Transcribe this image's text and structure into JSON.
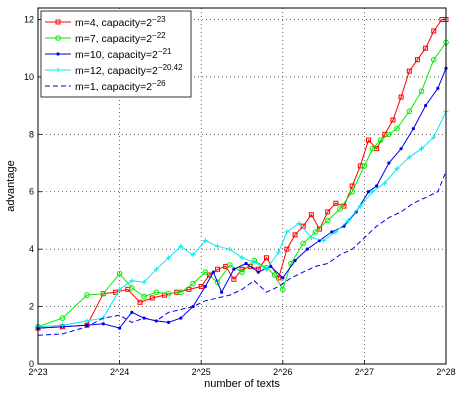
{
  "chart_data": {
    "type": "line",
    "xlabel": "number of texts",
    "ylabel": "advantage",
    "xlim": [
      23,
      28
    ],
    "ylim": [
      0,
      12.4
    ],
    "x_ticks": [
      {
        "value": 23,
        "label": "2^23"
      },
      {
        "value": 24,
        "label": "2^24"
      },
      {
        "value": 25,
        "label": "2^25"
      },
      {
        "value": 26,
        "label": "2^26"
      },
      {
        "value": 27,
        "label": "2^27"
      },
      {
        "value": 28,
        "label": "2^28"
      }
    ],
    "y_ticks": [
      0,
      2,
      4,
      6,
      8,
      10,
      12
    ],
    "grid": true,
    "legend_position": "top-left",
    "series": [
      {
        "name": "m=4, capacity=2",
        "exp": "−23",
        "color": "#ff0000",
        "dashed": false,
        "marker": "square",
        "x": [
          23.0,
          23.3,
          23.6,
          23.8,
          23.95,
          24.1,
          24.25,
          24.4,
          24.55,
          24.7,
          24.85,
          25.0,
          25.1,
          25.2,
          25.3,
          25.4,
          25.5,
          25.6,
          25.7,
          25.8,
          25.95,
          26.05,
          26.15,
          26.25,
          26.35,
          26.45,
          26.55,
          26.65,
          26.75,
          26.85,
          26.95,
          27.05,
          27.15,
          27.25,
          27.35,
          27.45,
          27.55,
          27.65,
          27.75,
          27.85,
          27.95,
          28.0
        ],
        "y": [
          1.25,
          1.3,
          1.35,
          2.45,
          2.5,
          2.6,
          2.15,
          2.3,
          2.4,
          2.5,
          2.6,
          2.7,
          3.1,
          3.3,
          3.4,
          2.95,
          3.3,
          3.4,
          3.3,
          3.7,
          3.0,
          4.0,
          4.5,
          4.8,
          5.2,
          4.7,
          5.3,
          5.6,
          5.5,
          6.2,
          6.9,
          7.8,
          7.5,
          8.0,
          8.5,
          9.3,
          10.2,
          10.6,
          11.0,
          11.6,
          12.0,
          12.0
        ]
      },
      {
        "name": "m=7, capacity=2",
        "exp": "−22",
        "color": "#00ee00",
        "dashed": false,
        "marker": "circle",
        "x": [
          23.0,
          23.3,
          23.6,
          23.8,
          24.0,
          24.15,
          24.3,
          24.45,
          24.6,
          24.75,
          24.9,
          25.05,
          25.2,
          25.35,
          25.5,
          25.65,
          25.8,
          25.9,
          26.0,
          26.1,
          26.25,
          26.4,
          26.55,
          26.7,
          26.85,
          27.0,
          27.1,
          27.2,
          27.3,
          27.4,
          27.55,
          27.7,
          27.85,
          28.0
        ],
        "y": [
          1.3,
          1.6,
          2.4,
          2.45,
          3.15,
          2.65,
          2.35,
          2.5,
          2.45,
          2.5,
          2.8,
          3.2,
          2.85,
          3.45,
          3.2,
          3.6,
          3.35,
          3.1,
          2.6,
          3.5,
          4.2,
          4.6,
          5.0,
          5.4,
          6.0,
          6.9,
          7.5,
          7.8,
          8.0,
          8.2,
          8.8,
          9.5,
          10.6,
          11.2
        ]
      },
      {
        "name": "m=10, capacity=2",
        "exp": "−21",
        "color": "#0000ee",
        "dashed": false,
        "marker": "dot",
        "x": [
          23.0,
          23.3,
          23.6,
          23.8,
          24.0,
          24.15,
          24.3,
          24.45,
          24.6,
          24.75,
          24.9,
          25.05,
          25.15,
          25.25,
          25.4,
          25.55,
          25.7,
          25.85,
          26.0,
          26.15,
          26.3,
          26.45,
          26.6,
          26.75,
          26.9,
          27.05,
          27.15,
          27.3,
          27.45,
          27.6,
          27.75,
          27.9,
          28.0
        ],
        "y": [
          1.25,
          1.3,
          1.35,
          1.4,
          1.25,
          1.8,
          1.6,
          1.5,
          1.45,
          1.6,
          2.0,
          2.7,
          3.2,
          2.5,
          3.3,
          3.5,
          3.2,
          3.4,
          3.0,
          3.6,
          4.0,
          4.3,
          4.6,
          4.8,
          5.3,
          6.0,
          6.2,
          7.0,
          7.5,
          8.2,
          9.0,
          9.6,
          10.3
        ]
      },
      {
        "name": "m=12, capacity=2",
        "exp": "−20.42",
        "color": "#00eeee",
        "dashed": false,
        "marker": "star",
        "x": [
          23.0,
          23.3,
          23.6,
          23.8,
          24.0,
          24.15,
          24.3,
          24.45,
          24.6,
          24.75,
          24.9,
          25.05,
          25.2,
          25.35,
          25.5,
          25.65,
          25.8,
          25.95,
          26.05,
          26.2,
          26.35,
          26.5,
          26.65,
          26.8,
          26.95,
          27.1,
          27.25,
          27.4,
          27.55,
          27.7,
          27.85,
          28.0
        ],
        "y": [
          1.3,
          1.35,
          1.5,
          1.6,
          2.6,
          2.9,
          2.85,
          3.3,
          3.7,
          4.1,
          3.8,
          4.3,
          4.1,
          4.0,
          3.7,
          3.55,
          3.3,
          3.9,
          4.6,
          4.9,
          4.4,
          4.3,
          4.6,
          5.0,
          5.5,
          6.0,
          6.3,
          6.8,
          7.2,
          7.5,
          7.9,
          8.8
        ]
      },
      {
        "name": "m=1, capacity=2",
        "exp": "−26",
        "color": "#0000ee",
        "dashed": true,
        "marker": "none",
        "x": [
          23.0,
          23.3,
          23.6,
          23.8,
          24.0,
          24.15,
          24.3,
          24.45,
          24.6,
          24.75,
          24.9,
          25.05,
          25.2,
          25.35,
          25.5,
          25.65,
          25.8,
          25.95,
          26.1,
          26.25,
          26.4,
          26.55,
          26.7,
          26.85,
          27.0,
          27.15,
          27.3,
          27.45,
          27.6,
          27.75,
          27.9,
          28.0
        ],
        "y": [
          1.0,
          1.05,
          1.3,
          1.6,
          1.7,
          1.45,
          1.6,
          1.5,
          1.8,
          1.9,
          2.0,
          2.2,
          2.3,
          2.4,
          2.6,
          2.9,
          2.5,
          2.7,
          3.0,
          3.2,
          3.4,
          3.5,
          3.8,
          4.0,
          4.4,
          4.8,
          5.1,
          5.3,
          5.6,
          5.8,
          6.0,
          6.7
        ]
      }
    ]
  }
}
